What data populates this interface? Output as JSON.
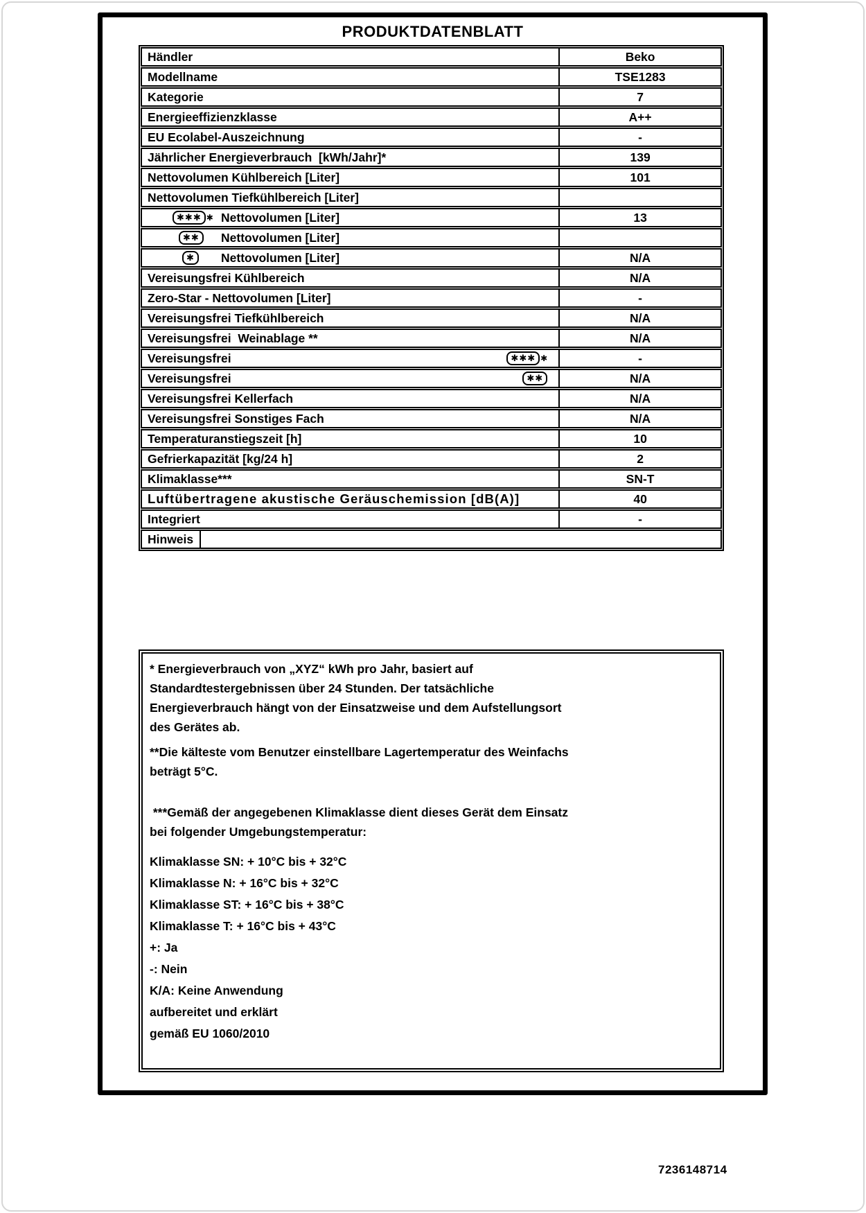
{
  "page": {
    "title": "PRODUKTDATENBLATT",
    "code": "7236148714"
  },
  "icons": {
    "star_glyph": "✱"
  },
  "table": {
    "rows": [
      {
        "label": "Händler",
        "value": "Beko"
      },
      {
        "label": "Modellname",
        "value": "TSE1283"
      },
      {
        "label": "Kategorie",
        "value": "7"
      },
      {
        "label": "Energieeffizienzklasse",
        "value": "A++"
      },
      {
        "label": "EU Ecolabel-Auszeichnung",
        "value": "-"
      },
      {
        "label": "Jährlicher Energieverbrauch  [kWh/Jahr]*",
        "value": "139"
      },
      {
        "label": "Nettovolumen Kühlbereich [Liter]",
        "value": "101"
      },
      {
        "label": "Nettovolumen Tiefkühlbereich [Liter]",
        "value": ""
      },
      {
        "label": "Nettovolumen [Liter]",
        "value": "13",
        "indent": true,
        "icon": {
          "name": "four-star-freezer-icon",
          "position": "left",
          "stars_in_box": 3,
          "star_outside": true
        }
      },
      {
        "label": "Nettovolumen [Liter]",
        "value": "",
        "indent": true,
        "icon": {
          "name": "two-star-freezer-icon",
          "position": "left",
          "stars_in_box": 2,
          "star_outside": false
        }
      },
      {
        "label": "Nettovolumen [Liter]",
        "value": "N/A",
        "indent": true,
        "icon": {
          "name": "one-star-freezer-icon",
          "position": "left",
          "stars_in_box": 1,
          "star_outside": false
        }
      },
      {
        "label": "Vereisungsfrei Kühlbereich",
        "value": "N/A"
      },
      {
        "label": "Zero-Star - Nettovolumen [Liter]",
        "value": "-"
      },
      {
        "label": "Vereisungsfrei Tiefkühlbereich",
        "value": "N/A"
      },
      {
        "label": "Vereisungsfrei  Weinablage **",
        "value": "N/A"
      },
      {
        "label": "Vereisungsfrei",
        "value": "-",
        "icon": {
          "name": "four-star-freezer-icon",
          "position": "right",
          "stars_in_box": 3,
          "star_outside": true
        }
      },
      {
        "label": "Vereisungsfrei",
        "value": "N/A",
        "icon": {
          "name": "two-star-freezer-icon",
          "position": "right",
          "stars_in_box": 2,
          "star_outside": false
        }
      },
      {
        "label": "Vereisungsfrei Kellerfach",
        "value": "N/A"
      },
      {
        "label": "Vereisungsfrei Sonstiges Fach",
        "value": "N/A"
      },
      {
        "label": "Temperaturanstiegszeit [h]",
        "value": "10"
      },
      {
        "label": "Gefrierkapazität [kg/24 h]",
        "value": "2"
      },
      {
        "label": "Klimaklasse***",
        "value": "SN-T"
      },
      {
        "label": "Luftübertragene akustische Geräuschemission [dB(A)]",
        "value": "40",
        "overflow": true
      },
      {
        "label": "Integriert",
        "value": "-"
      },
      {
        "label": "Hinweis",
        "value": "",
        "type": "note"
      }
    ]
  },
  "footnotes": {
    "energy": [
      "* Energieverbrauch von „XYZ“ kWh pro Jahr, basiert auf",
      "Standardtestergebnissen über 24 Stunden. Der tatsächliche",
      "Energieverbrauch hängt von der Einsatzweise und dem Aufstellungsort",
      "des Gerätes ab."
    ],
    "wine": [
      "**Die kälteste vom Benutzer einstellbare Lagertemperatur des Weinfachs",
      "beträgt 5°C."
    ],
    "climate_intro": [
      " ***Gemäß der angegebenen Klimaklasse dient dieses Gerät dem Einsatz",
      "bei folgender Umgebungstemperatur:"
    ],
    "climate_classes": [
      "Klimaklasse SN: + 10°C bis + 32°C",
      "Klimaklasse N: + 16°C bis + 32°C",
      "Klimaklasse ST: + 16°C bis + 38°C",
      "Klimaklasse T: + 16°C bis + 43°C",
      "+: Ja",
      "-: Nein",
      "K/A: Keine Anwendung",
      "aufbereitet und erklärt",
      "gemäß EU 1060/2010"
    ]
  }
}
